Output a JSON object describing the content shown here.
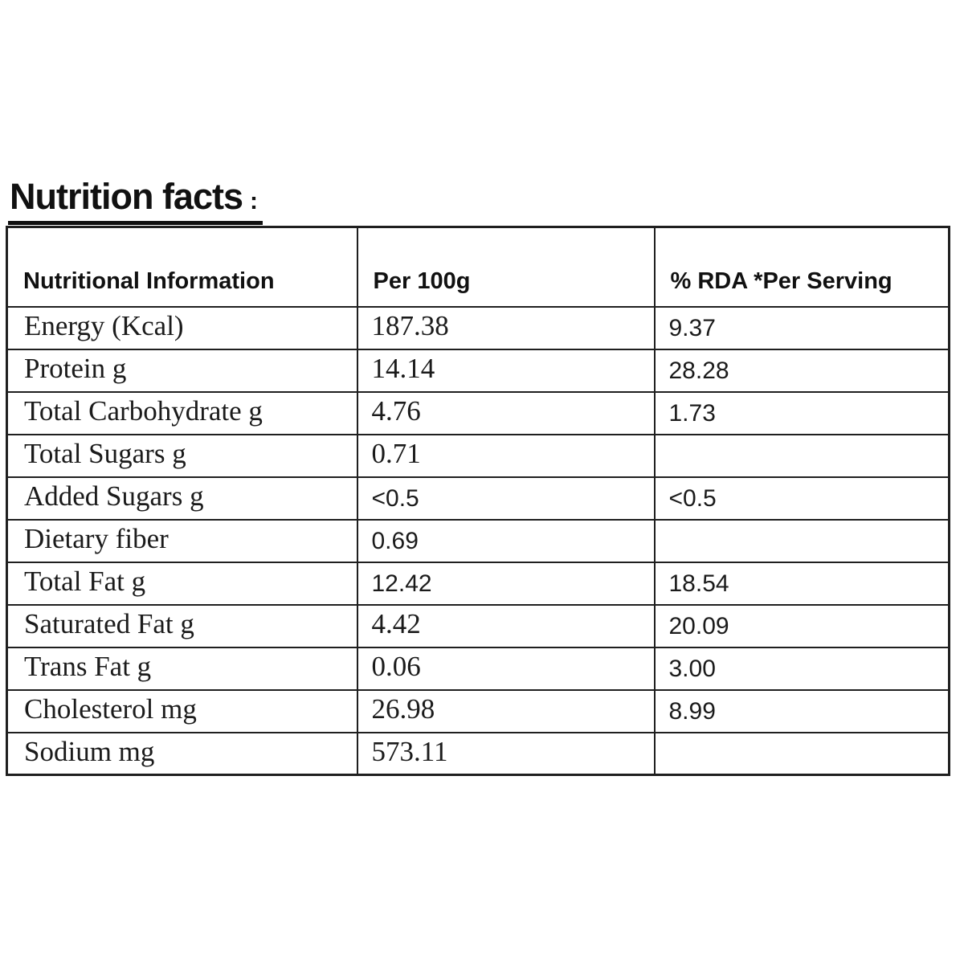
{
  "title": {
    "text": "Nutrition facts",
    "suffix": ":"
  },
  "colors": {
    "background": "#ffffff",
    "text": "#1b1b1b",
    "border": "#1f1f1f"
  },
  "table": {
    "headers": [
      "Nutritional Information",
      "Per 100g",
      "% RDA *Per Serving"
    ],
    "rows": [
      {
        "label": "Energy (Kcal)",
        "per_100g": "187.38",
        "rda_per_serving": "9.37",
        "per_100g_style": "serif"
      },
      {
        "label": "Protein g",
        "per_100g": "14.14",
        "rda_per_serving": "28.28",
        "per_100g_style": "serif"
      },
      {
        "label": "Total Carbohydrate g",
        "per_100g": "4.76",
        "rda_per_serving": "1.73",
        "per_100g_style": "serif"
      },
      {
        "label": "Total Sugars g",
        "per_100g": "0.71",
        "rda_per_serving": "",
        "per_100g_style": "serif"
      },
      {
        "label": "Added Sugars g",
        "per_100g": "<0.5",
        "rda_per_serving": "<0.5",
        "per_100g_style": "sans"
      },
      {
        "label": "Dietary fiber",
        "per_100g": "0.69",
        "rda_per_serving": "",
        "per_100g_style": "sans"
      },
      {
        "label": "Total Fat g",
        "per_100g": "12.42",
        "rda_per_serving": "18.54",
        "per_100g_style": "sans"
      },
      {
        "label": "Saturated Fat g",
        "per_100g": "4.42",
        "rda_per_serving": "20.09",
        "per_100g_style": "serif"
      },
      {
        "label": "Trans Fat g",
        "per_100g": "0.06",
        "rda_per_serving": "3.00",
        "per_100g_style": "serif"
      },
      {
        "label": "Cholesterol mg",
        "per_100g": "26.98",
        "rda_per_serving": "8.99",
        "per_100g_style": "serif"
      },
      {
        "label": "Sodium mg",
        "per_100g": "573.11",
        "rda_per_serving": "",
        "per_100g_style": "serif"
      }
    ]
  }
}
